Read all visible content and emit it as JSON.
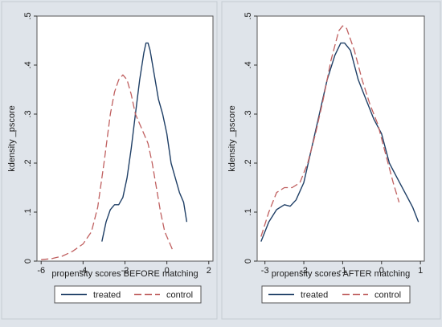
{
  "chart_data": [
    {
      "type": "line",
      "title": "",
      "xlabel": "propensity scores BEFORE matching",
      "ylabel": "kdensity _pscore",
      "xlim": [
        -6.2,
        2.2
      ],
      "ylim": [
        0,
        0.5
      ],
      "xticks": [
        "-6",
        "-4",
        "-2",
        "0",
        "2"
      ],
      "yticks": [
        "0",
        ".1",
        ".2",
        ".3",
        ".4",
        ".5"
      ],
      "grid": false,
      "legend_placement": "bottom",
      "series": [
        {
          "name": "treated",
          "color": "#1f3f66",
          "style": "solid",
          "points": [
            [
              -3.1,
              0.04
            ],
            [
              -2.9,
              0.08
            ],
            [
              -2.7,
              0.105
            ],
            [
              -2.5,
              0.115
            ],
            [
              -2.3,
              0.115
            ],
            [
              -2.1,
              0.13
            ],
            [
              -1.9,
              0.17
            ],
            [
              -1.7,
              0.23
            ],
            [
              -1.5,
              0.3
            ],
            [
              -1.3,
              0.37
            ],
            [
              -1.1,
              0.425
            ],
            [
              -1.0,
              0.445
            ],
            [
              -0.9,
              0.445
            ],
            [
              -0.8,
              0.43
            ],
            [
              -0.6,
              0.38
            ],
            [
              -0.4,
              0.33
            ],
            [
              -0.2,
              0.3
            ],
            [
              0.0,
              0.26
            ],
            [
              0.2,
              0.2
            ],
            [
              0.4,
              0.17
            ],
            [
              0.6,
              0.14
            ],
            [
              0.8,
              0.12
            ],
            [
              0.95,
              0.08
            ]
          ]
        },
        {
          "name": "control",
          "color": "#c06060",
          "style": "dashed",
          "points": [
            [
              -6.0,
              0.003
            ],
            [
              -5.5,
              0.005
            ],
            [
              -5.0,
              0.01
            ],
            [
              -4.5,
              0.02
            ],
            [
              -4.0,
              0.035
            ],
            [
              -3.6,
              0.06
            ],
            [
              -3.3,
              0.11
            ],
            [
              -3.0,
              0.2
            ],
            [
              -2.7,
              0.3
            ],
            [
              -2.5,
              0.345
            ],
            [
              -2.3,
              0.37
            ],
            [
              -2.1,
              0.38
            ],
            [
              -1.9,
              0.37
            ],
            [
              -1.7,
              0.34
            ],
            [
              -1.5,
              0.3
            ],
            [
              -1.3,
              0.28
            ],
            [
              -1.1,
              0.26
            ],
            [
              -0.9,
              0.24
            ],
            [
              -0.7,
              0.2
            ],
            [
              -0.5,
              0.15
            ],
            [
              -0.3,
              0.1
            ],
            [
              -0.1,
              0.06
            ],
            [
              0.1,
              0.04
            ],
            [
              0.3,
              0.02
            ]
          ]
        }
      ]
    },
    {
      "type": "line",
      "title": "",
      "xlabel": "propensity scores AFTER matching",
      "ylabel": "kdensity _pscore",
      "xlim": [
        -3.2,
        1.1
      ],
      "ylim": [
        0,
        0.5
      ],
      "xticks": [
        "-3",
        "-2",
        "-1",
        "0",
        "1"
      ],
      "yticks": [
        "0",
        ".1",
        ".2",
        ".3",
        ".4",
        ".5"
      ],
      "grid": false,
      "legend_placement": "bottom",
      "series": [
        {
          "name": "treated",
          "color": "#1f3f66",
          "style": "solid",
          "points": [
            [
              -3.1,
              0.04
            ],
            [
              -2.9,
              0.08
            ],
            [
              -2.7,
              0.105
            ],
            [
              -2.5,
              0.115
            ],
            [
              -2.35,
              0.112
            ],
            [
              -2.2,
              0.125
            ],
            [
              -2.0,
              0.16
            ],
            [
              -1.8,
              0.23
            ],
            [
              -1.6,
              0.3
            ],
            [
              -1.4,
              0.37
            ],
            [
              -1.2,
              0.42
            ],
            [
              -1.05,
              0.445
            ],
            [
              -0.95,
              0.445
            ],
            [
              -0.8,
              0.43
            ],
            [
              -0.6,
              0.37
            ],
            [
              -0.4,
              0.33
            ],
            [
              -0.2,
              0.29
            ],
            [
              0.0,
              0.26
            ],
            [
              0.2,
              0.2
            ],
            [
              0.4,
              0.17
            ],
            [
              0.6,
              0.14
            ],
            [
              0.8,
              0.11
            ],
            [
              0.95,
              0.08
            ]
          ]
        },
        {
          "name": "control",
          "color": "#c06060",
          "style": "dashed",
          "points": [
            [
              -3.1,
              0.05
            ],
            [
              -2.9,
              0.1
            ],
            [
              -2.7,
              0.14
            ],
            [
              -2.5,
              0.15
            ],
            [
              -2.3,
              0.15
            ],
            [
              -2.1,
              0.16
            ],
            [
              -1.9,
              0.2
            ],
            [
              -1.7,
              0.26
            ],
            [
              -1.5,
              0.33
            ],
            [
              -1.3,
              0.41
            ],
            [
              -1.1,
              0.47
            ],
            [
              -1.0,
              0.48
            ],
            [
              -0.9,
              0.475
            ],
            [
              -0.7,
              0.43
            ],
            [
              -0.5,
              0.37
            ],
            [
              -0.3,
              0.32
            ],
            [
              -0.1,
              0.28
            ],
            [
              0.1,
              0.22
            ],
            [
              0.3,
              0.16
            ],
            [
              0.45,
              0.12
            ]
          ]
        }
      ]
    }
  ]
}
